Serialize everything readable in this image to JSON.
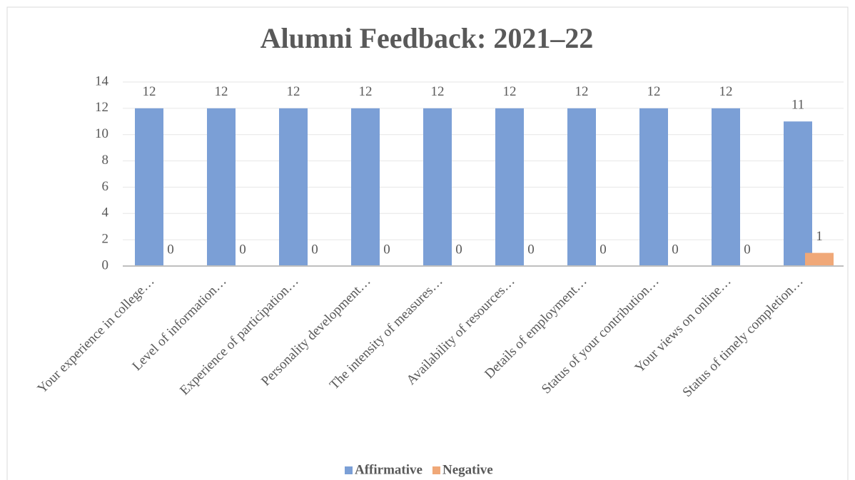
{
  "chart_data": {
    "type": "bar",
    "title": "Alumni Feedback: 2021–22",
    "categories": [
      "Your experience in college…",
      "Level of information…",
      "Experience of participation…",
      "Personality development…",
      "The intensity of measures…",
      "Availability of resources…",
      "Details of employment…",
      "Status of your contribution…",
      "Your views on online…",
      "Status of timely completion…"
    ],
    "series": [
      {
        "name": "Affirmative",
        "color": "#7b9fd6",
        "values": [
          12,
          12,
          12,
          12,
          12,
          12,
          12,
          12,
          12,
          11
        ]
      },
      {
        "name": "Negative",
        "color": "#f0a878",
        "values": [
          0,
          0,
          0,
          0,
          0,
          0,
          0,
          0,
          0,
          1
        ]
      }
    ],
    "ylim": [
      0,
      14
    ],
    "yticks": [
      0,
      2,
      4,
      6,
      8,
      10,
      12,
      14
    ],
    "grid": true,
    "legend": "bottom"
  }
}
